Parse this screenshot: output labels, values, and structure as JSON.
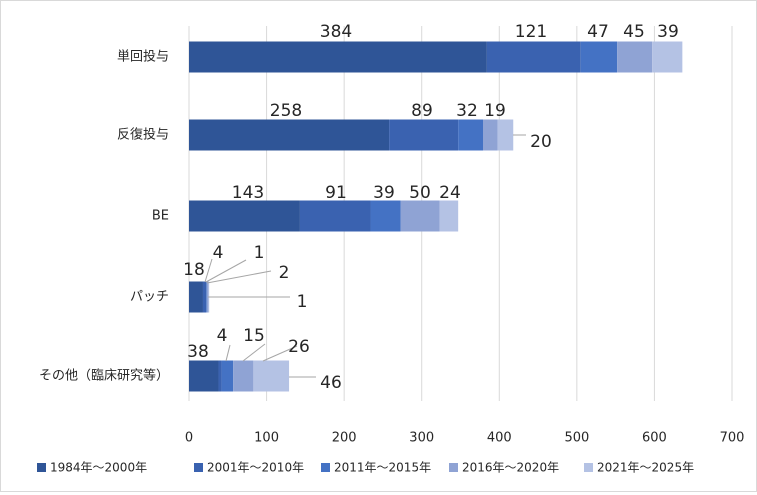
{
  "chart_data": {
    "type": "bar",
    "orientation": "horizontal",
    "stacked": true,
    "categories": [
      "単回投与",
      "反復投与",
      "BE",
      "パッチ",
      "その他（臨床研究等）"
    ],
    "series": [
      {
        "name": "1984年～2000年",
        "color": "#2f5597",
        "values": [
          384,
          258,
          143,
          18,
          38
        ]
      },
      {
        "name": "2001年～2010年",
        "color": "#3a62b0",
        "values": [
          121,
          89,
          91,
          4,
          4
        ]
      },
      {
        "name": "2011年～2015年",
        "color": "#4472c4",
        "values": [
          47,
          32,
          39,
          1,
          15
        ]
      },
      {
        "name": "2016年～2020年",
        "color": "#8fa3d4",
        "values": [
          45,
          19,
          50,
          2,
          26
        ]
      },
      {
        "name": "2021年～2025年",
        "color": "#b4c2e4",
        "values": [
          39,
          20,
          24,
          1,
          46
        ]
      }
    ],
    "xlim": [
      0,
      700
    ],
    "xticks": [
      "0",
      "100",
      "200",
      "300",
      "400",
      "500",
      "600",
      "700"
    ],
    "grid": "vertical",
    "legend": "bottom"
  }
}
